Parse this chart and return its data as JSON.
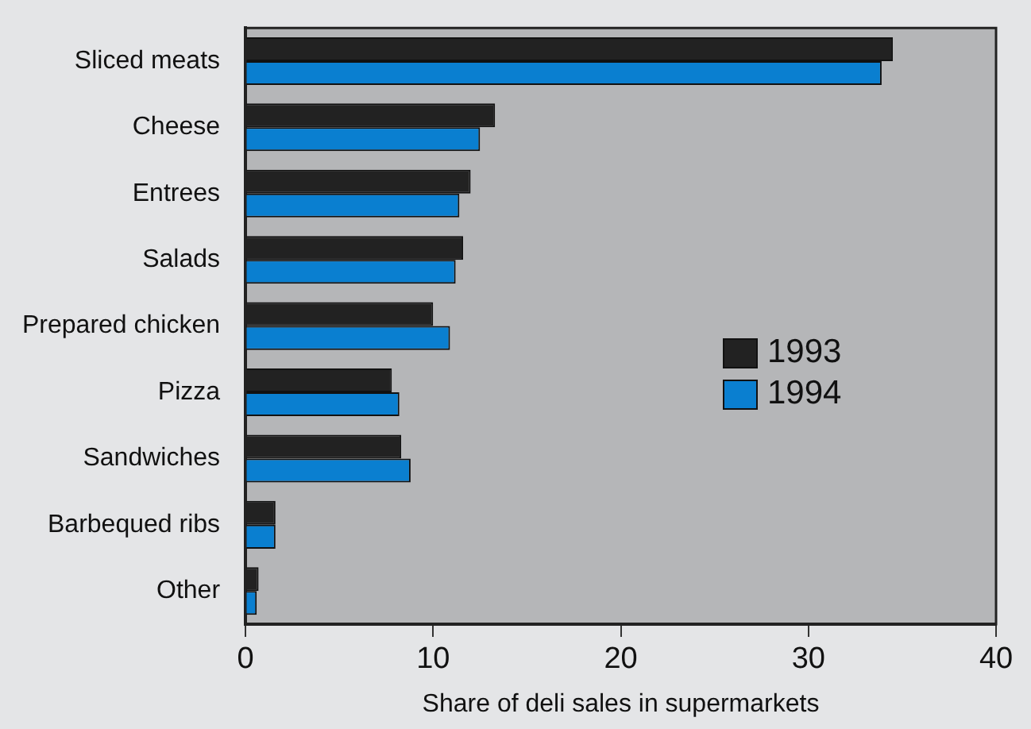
{
  "chart_data": {
    "type": "bar",
    "orientation": "horizontal",
    "xlabel": "Share of deli sales in supermarkets",
    "categories": [
      "Sliced meats",
      "Cheese",
      "Entrees",
      "Salads",
      "Prepared chicken",
      "Pizza",
      "Sandwiches",
      "Barbequed ribs",
      "Other"
    ],
    "series": [
      {
        "name": "1993",
        "color": "#222222",
        "values": [
          34.5,
          13.3,
          12.0,
          11.6,
          10.0,
          7.8,
          8.3,
          1.6,
          0.7
        ]
      },
      {
        "name": "1994",
        "color": "#0a7fd0",
        "values": [
          33.9,
          12.5,
          11.4,
          11.2,
          10.9,
          8.2,
          8.8,
          1.6,
          0.6
        ]
      }
    ],
    "xlim": [
      0,
      40
    ],
    "xticks": [
      0,
      10,
      20,
      30,
      40
    ],
    "grid": false,
    "legend": "right"
  }
}
